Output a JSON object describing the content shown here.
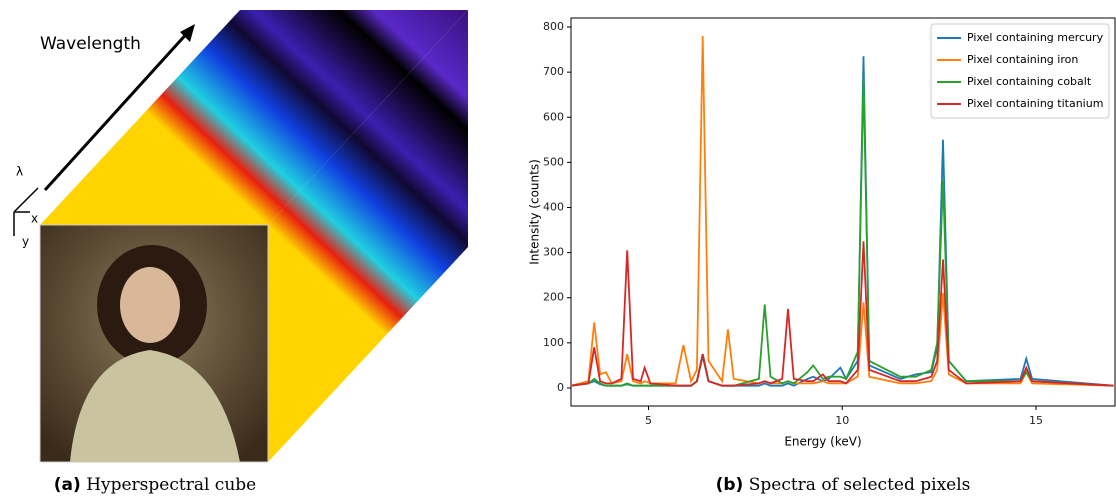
{
  "panel_a": {
    "wavelength_label": "Wavelength",
    "lambda_label": "λ",
    "x_label": "x",
    "y_label": "y"
  },
  "captions": [
    {
      "label": "(a)",
      "text": "Hyperspectral cube"
    },
    {
      "label": "(b)",
      "text": "Spectra of selected pixels"
    }
  ],
  "chart_data": {
    "type": "line",
    "xlabel": "Energy (keV)",
    "ylabel": "Intensity (counts)",
    "x": [
      3.0,
      3.45,
      3.6,
      3.75,
      3.9,
      4.05,
      4.3,
      4.45,
      4.6,
      4.8,
      4.9,
      5.05,
      5.7,
      5.9,
      6.1,
      6.25,
      6.4,
      6.55,
      6.9,
      7.05,
      7.2,
      7.85,
      8.0,
      8.15,
      8.45,
      8.6,
      8.75,
      9.1,
      9.25,
      9.5,
      9.65,
      9.95,
      10.1,
      10.4,
      10.55,
      10.7,
      11.5,
      11.9,
      12.3,
      12.45,
      12.6,
      12.75,
      13.2,
      14.6,
      14.75,
      14.9,
      17.0
    ],
    "series": [
      {
        "name": "Pixel containing mercury",
        "color": "#1f77b4",
        "values": [
          5,
          10,
          15,
          8,
          5,
          5,
          5,
          8,
          5,
          5,
          5,
          5,
          5,
          5,
          5,
          15,
          70,
          15,
          5,
          5,
          5,
          5,
          10,
          5,
          5,
          10,
          5,
          20,
          25,
          15,
          20,
          45,
          20,
          60,
          735,
          50,
          20,
          30,
          35,
          90,
          550,
          60,
          15,
          20,
          65,
          20,
          5
        ]
      },
      {
        "name": "Pixel containing iron",
        "color": "#ff7f0e",
        "values": [
          5,
          15,
          145,
          30,
          35,
          10,
          15,
          75,
          15,
          10,
          15,
          10,
          10,
          95,
          15,
          40,
          780,
          60,
          15,
          130,
          20,
          10,
          15,
          10,
          10,
          15,
          10,
          10,
          10,
          15,
          10,
          10,
          10,
          25,
          190,
          25,
          10,
          10,
          15,
          40,
          210,
          30,
          10,
          10,
          35,
          10,
          5
        ]
      },
      {
        "name": "Pixel containing cobalt",
        "color": "#2ca02c",
        "values": [
          5,
          10,
          20,
          10,
          5,
          5,
          5,
          10,
          5,
          5,
          5,
          5,
          5,
          5,
          5,
          15,
          75,
          15,
          5,
          5,
          5,
          20,
          185,
          25,
          10,
          15,
          10,
          35,
          50,
          20,
          25,
          25,
          20,
          80,
          685,
          60,
          25,
          25,
          40,
          100,
          460,
          60,
          15,
          15,
          35,
          15,
          5
        ]
      },
      {
        "name": "Pixel containing titanium",
        "color": "#d62728",
        "values": [
          5,
          10,
          90,
          15,
          10,
          10,
          20,
          305,
          20,
          15,
          45,
          10,
          5,
          5,
          5,
          15,
          75,
          15,
          5,
          5,
          5,
          10,
          15,
          10,
          20,
          175,
          20,
          15,
          15,
          30,
          15,
          15,
          10,
          40,
          325,
          40,
          15,
          15,
          25,
          60,
          285,
          40,
          10,
          15,
          45,
          15,
          5
        ]
      }
    ],
    "xlim": [
      3.0,
      17.04
    ],
    "ylim": [
      -40,
      820
    ],
    "xticks": [
      5,
      10,
      15
    ],
    "yticks": [
      0,
      100,
      200,
      300,
      400,
      500,
      600,
      700,
      800
    ],
    "legend": "upper right"
  }
}
